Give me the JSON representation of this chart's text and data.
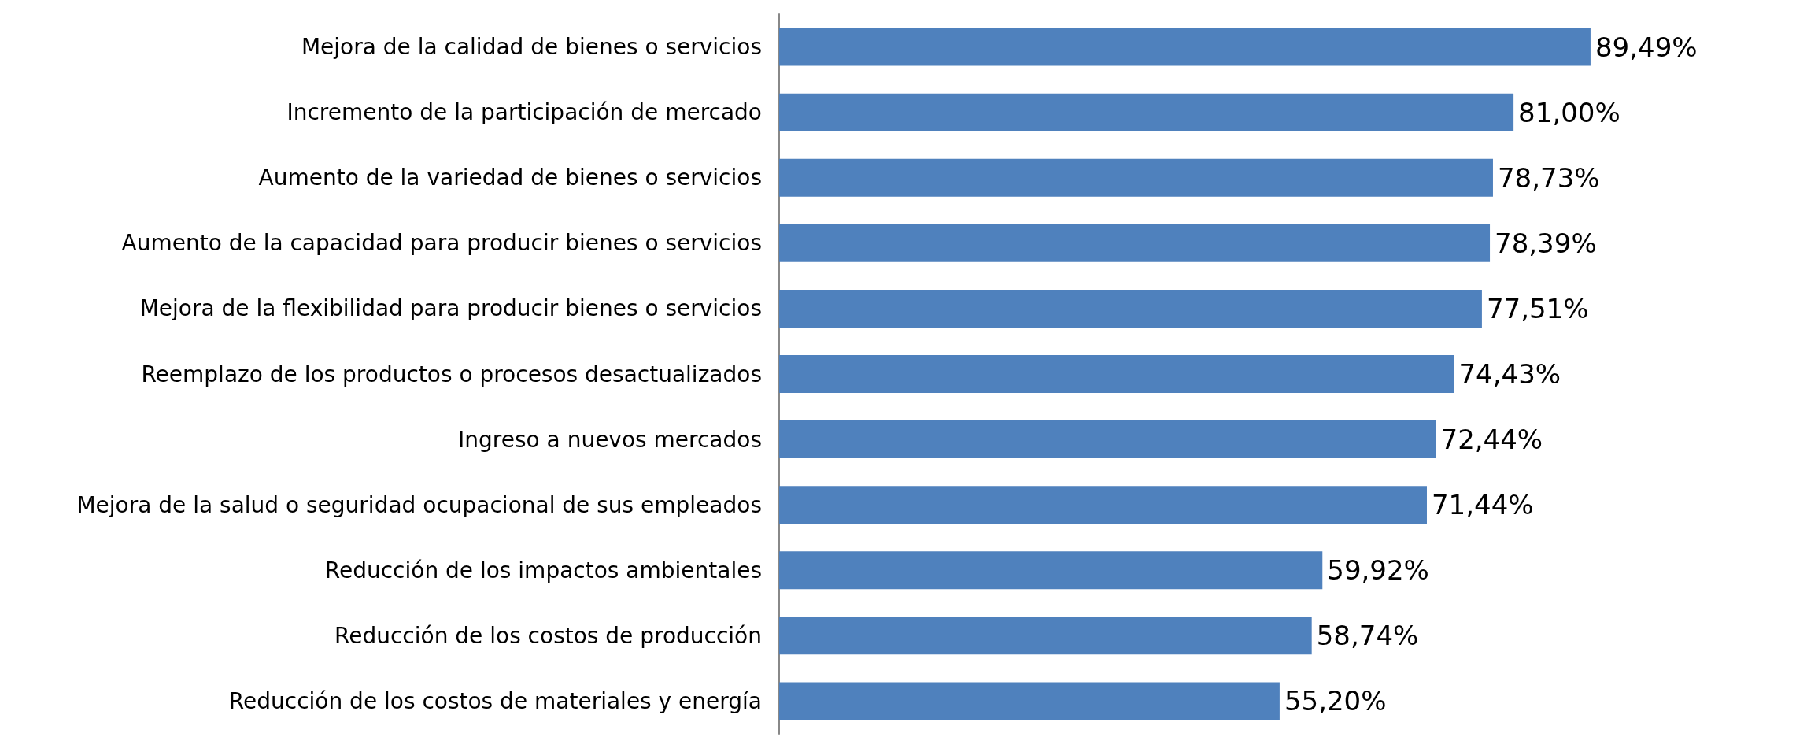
{
  "chart_data": {
    "type": "bar",
    "orientation": "horizontal",
    "categories": [
      "Mejora de la calidad de bienes o servicios",
      "Incremento de la participación de mercado",
      "Aumento de la variedad de bienes o servicios",
      "Aumento de la capacidad para producir bienes o servicios",
      "Mejora de la flexibilidad para producir bienes o servicios",
      "Reemplazo de los productos o procesos desactualizados",
      "Ingreso a nuevos mercados",
      "Mejora de la salud o seguridad ocupacional de sus empleados",
      "Reducción de los impactos ambientales",
      "Reducción de los costos de producción",
      "Reducción de los costos de materiales y energía"
    ],
    "values": [
      89.49,
      81.0,
      78.73,
      78.39,
      77.51,
      74.43,
      72.44,
      71.44,
      59.92,
      58.74,
      55.2
    ],
    "value_labels": [
      "89,49%",
      "81,00%",
      "78,73%",
      "78,39%",
      "77,51%",
      "74,43%",
      "72,44%",
      "71,44%",
      "59,92%",
      "58,74%",
      "55,20%"
    ],
    "color": "#4f81bd",
    "tick_labels": "y"
  }
}
